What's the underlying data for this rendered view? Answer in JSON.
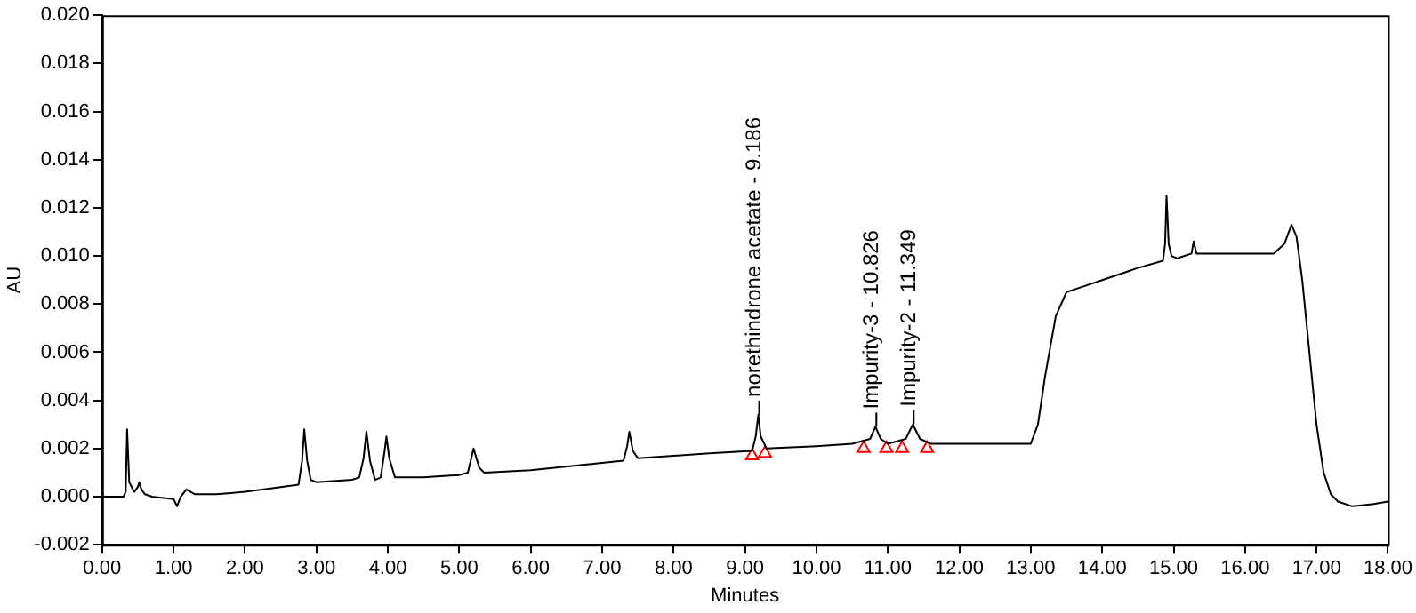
{
  "chart_data": {
    "type": "line",
    "xlabel": "Minutes",
    "ylabel": "AU",
    "xlim": [
      0,
      18
    ],
    "ylim": [
      -0.002,
      0.02
    ],
    "xticks": [
      {
        "value": 0,
        "label": "0.00"
      },
      {
        "value": 1,
        "label": "1.00"
      },
      {
        "value": 2,
        "label": "2.00"
      },
      {
        "value": 3,
        "label": "3.00"
      },
      {
        "value": 4,
        "label": "4.00"
      },
      {
        "value": 5,
        "label": "5.00"
      },
      {
        "value": 6,
        "label": "6.00"
      },
      {
        "value": 7,
        "label": "7.00"
      },
      {
        "value": 8,
        "label": "8.00"
      },
      {
        "value": 9,
        "label": "9.00"
      },
      {
        "value": 10,
        "label": "10.00"
      },
      {
        "value": 11,
        "label": "11.00"
      },
      {
        "value": 12,
        "label": "12.00"
      },
      {
        "value": 13,
        "label": "13.00"
      },
      {
        "value": 14,
        "label": "14.00"
      },
      {
        "value": 15,
        "label": "15.00"
      },
      {
        "value": 16,
        "label": "16.00"
      },
      {
        "value": 17,
        "label": "17.00"
      },
      {
        "value": 18,
        "label": "18.00"
      }
    ],
    "yticks": [
      {
        "value": -0.002,
        "label": "-0.002"
      },
      {
        "value": 0,
        "label": "0.000"
      },
      {
        "value": 0.002,
        "label": "0.002"
      },
      {
        "value": 0.004,
        "label": "0.004"
      },
      {
        "value": 0.006,
        "label": "0.006"
      },
      {
        "value": 0.008,
        "label": "0.008"
      },
      {
        "value": 0.01,
        "label": "0.010"
      },
      {
        "value": 0.012,
        "label": "0.012"
      },
      {
        "value": 0.014,
        "label": "0.014"
      },
      {
        "value": 0.016,
        "label": "0.016"
      },
      {
        "value": 0.018,
        "label": "0.018"
      },
      {
        "value": 0.02,
        "label": "0.020"
      }
    ],
    "grid": false,
    "legend": false,
    "series": [
      {
        "type": "line",
        "color": "#000000",
        "marker": "none",
        "line_style": "solid",
        "x": [
          0,
          0.3,
          0.33,
          0.35,
          0.38,
          0.45,
          0.5,
          0.52,
          0.55,
          0.6,
          0.7,
          1.0,
          1.05,
          1.1,
          1.18,
          1.3,
          1.6,
          2.0,
          2.5,
          2.75,
          2.8,
          2.83,
          2.87,
          2.92,
          3.0,
          3.5,
          3.6,
          3.66,
          3.7,
          3.75,
          3.82,
          3.9,
          3.95,
          3.98,
          4.02,
          4.1,
          4.5,
          5.0,
          5.12,
          5.2,
          5.28,
          5.35,
          6.0,
          7.0,
          7.3,
          7.35,
          7.38,
          7.43,
          7.5,
          8.0,
          8.5,
          9.1,
          9.15,
          9.186,
          9.22,
          9.3,
          10.0,
          10.5,
          10.75,
          10.826,
          10.9,
          11.0,
          11.25,
          11.349,
          11.45,
          11.6,
          12.0,
          13.0,
          13.1,
          13.2,
          13.35,
          13.5,
          13.7,
          14.0,
          14.5,
          14.85,
          14.88,
          14.9,
          14.93,
          14.97,
          15.05,
          15.25,
          15.28,
          15.32,
          16.0,
          16.4,
          16.55,
          16.65,
          16.72,
          16.8,
          16.9,
          17.0,
          17.1,
          17.2,
          17.3,
          17.5,
          17.8,
          18.0
        ],
        "values": [
          0,
          0,
          0.0002,
          0.0028,
          0.0006,
          0.0002,
          0.0004,
          0.0006,
          0.0003,
          0.0001,
          0,
          -0.0001,
          -0.0004,
          0,
          0.0003,
          0.0001,
          0.0001,
          0.0002,
          0.0004,
          0.0005,
          0.0015,
          0.0028,
          0.0015,
          0.0007,
          0.0006,
          0.0007,
          0.0008,
          0.0016,
          0.0027,
          0.0015,
          0.0007,
          0.0008,
          0.0018,
          0.0025,
          0.0016,
          0.0008,
          0.0008,
          0.0009,
          0.001,
          0.002,
          0.0012,
          0.001,
          0.0011,
          0.0014,
          0.0015,
          0.0021,
          0.0027,
          0.0019,
          0.0016,
          0.0017,
          0.0018,
          0.0019,
          0.0025,
          0.0034,
          0.0025,
          0.002,
          0.0021,
          0.0022,
          0.0024,
          0.0029,
          0.0024,
          0.0022,
          0.0024,
          0.003,
          0.0024,
          0.0022,
          0.0022,
          0.0022,
          0.003,
          0.005,
          0.0075,
          0.0085,
          0.0087,
          0.009,
          0.0095,
          0.0098,
          0.0105,
          0.0125,
          0.0105,
          0.01,
          0.0099,
          0.0101,
          0.0106,
          0.0101,
          0.0101,
          0.0101,
          0.0105,
          0.0113,
          0.0108,
          0.009,
          0.006,
          0.003,
          0.001,
          0.0001,
          -0.0002,
          -0.0004,
          -0.0003,
          -0.0002
        ]
      },
      {
        "type": "scatter",
        "color": "#ff0000",
        "marker": "triangle",
        "x": [
          9.1,
          9.28,
          10.66,
          10.98,
          11.2,
          11.55
        ],
        "values": [
          0.0017,
          0.0018,
          0.002,
          0.002,
          0.002,
          0.002
        ]
      }
    ],
    "annotations": [
      {
        "text": "norethindrone acetate - 9.186",
        "x": 9.186,
        "y": 0.0034
      },
      {
        "text": "Impurity-3 - 10.826",
        "x": 10.826,
        "y": 0.0029
      },
      {
        "text": "Impurity-2 - 11.349",
        "x": 11.349,
        "y": 0.003
      }
    ]
  }
}
